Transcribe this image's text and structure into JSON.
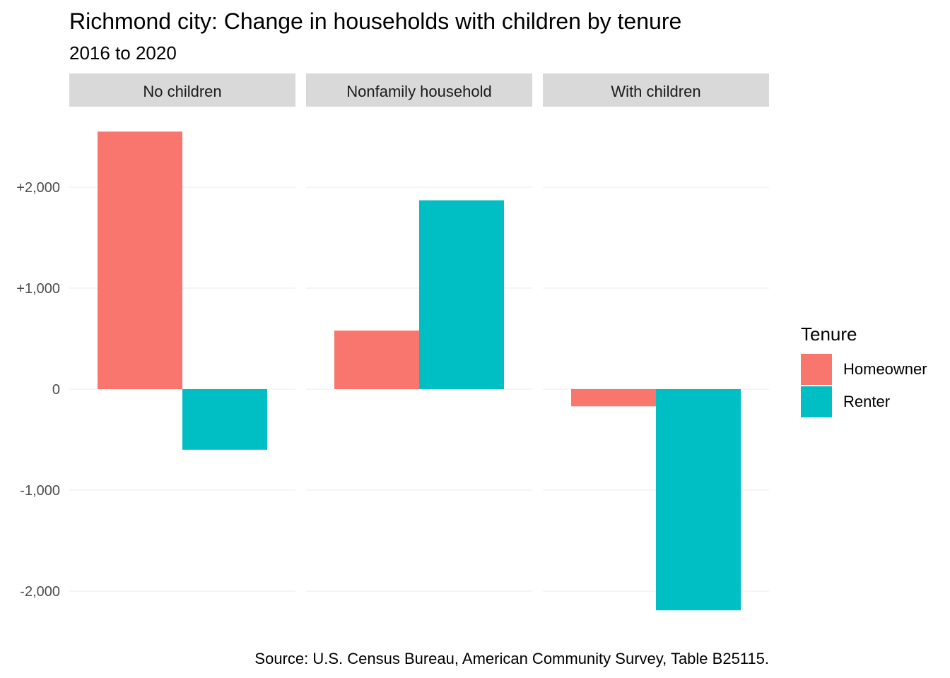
{
  "title": "Richmond city: Change in households with children by tenure",
  "subtitle": "2016 to 2020",
  "caption": "Source: U.S. Census Bureau, American Community Survey, Table B25115.",
  "legend": {
    "title": "Tenure",
    "items": [
      {
        "label": "Homeowner",
        "color": "#F8766D"
      },
      {
        "label": "Renter",
        "color": "#00BFC4"
      }
    ]
  },
  "chart_data": {
    "type": "bar",
    "facets": [
      "No children",
      "Nonfamily household",
      "With children"
    ],
    "series": [
      {
        "name": "Homeowner",
        "color": "#F8766D",
        "values": [
          2550,
          580,
          -170
        ]
      },
      {
        "name": "Renter",
        "color": "#00BFC4",
        "values": [
          -600,
          1870,
          -2190
        ]
      }
    ],
    "y_ticks": [
      2000,
      1000,
      0,
      -1000,
      -2000
    ],
    "y_tick_labels": [
      "+2,000",
      "+1,000",
      "0",
      "-1,000",
      "-2,000"
    ],
    "ylim": [
      -2380,
      2850
    ],
    "grid": true,
    "legend_position": "right"
  }
}
